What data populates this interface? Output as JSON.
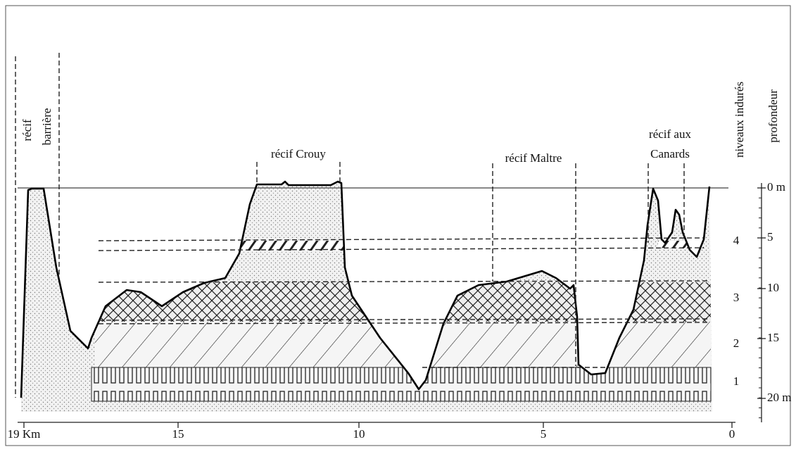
{
  "labels": {
    "recif_barriere": [
      "récif",
      "barrière"
    ],
    "crouy": "récif Crouy",
    "maltre": "récif Maltre",
    "canards": [
      "récif aux",
      "Canards"
    ],
    "niveaux": "niveaux indurés",
    "profondeur": "profondeur"
  },
  "depth_axis": [
    "0 m",
    "5",
    "10",
    "15",
    "20 m"
  ],
  "levels": [
    "4",
    "3",
    "2",
    "1"
  ],
  "distance_axis": [
    "19 Km",
    "15",
    "10",
    "5",
    "0"
  ]
}
